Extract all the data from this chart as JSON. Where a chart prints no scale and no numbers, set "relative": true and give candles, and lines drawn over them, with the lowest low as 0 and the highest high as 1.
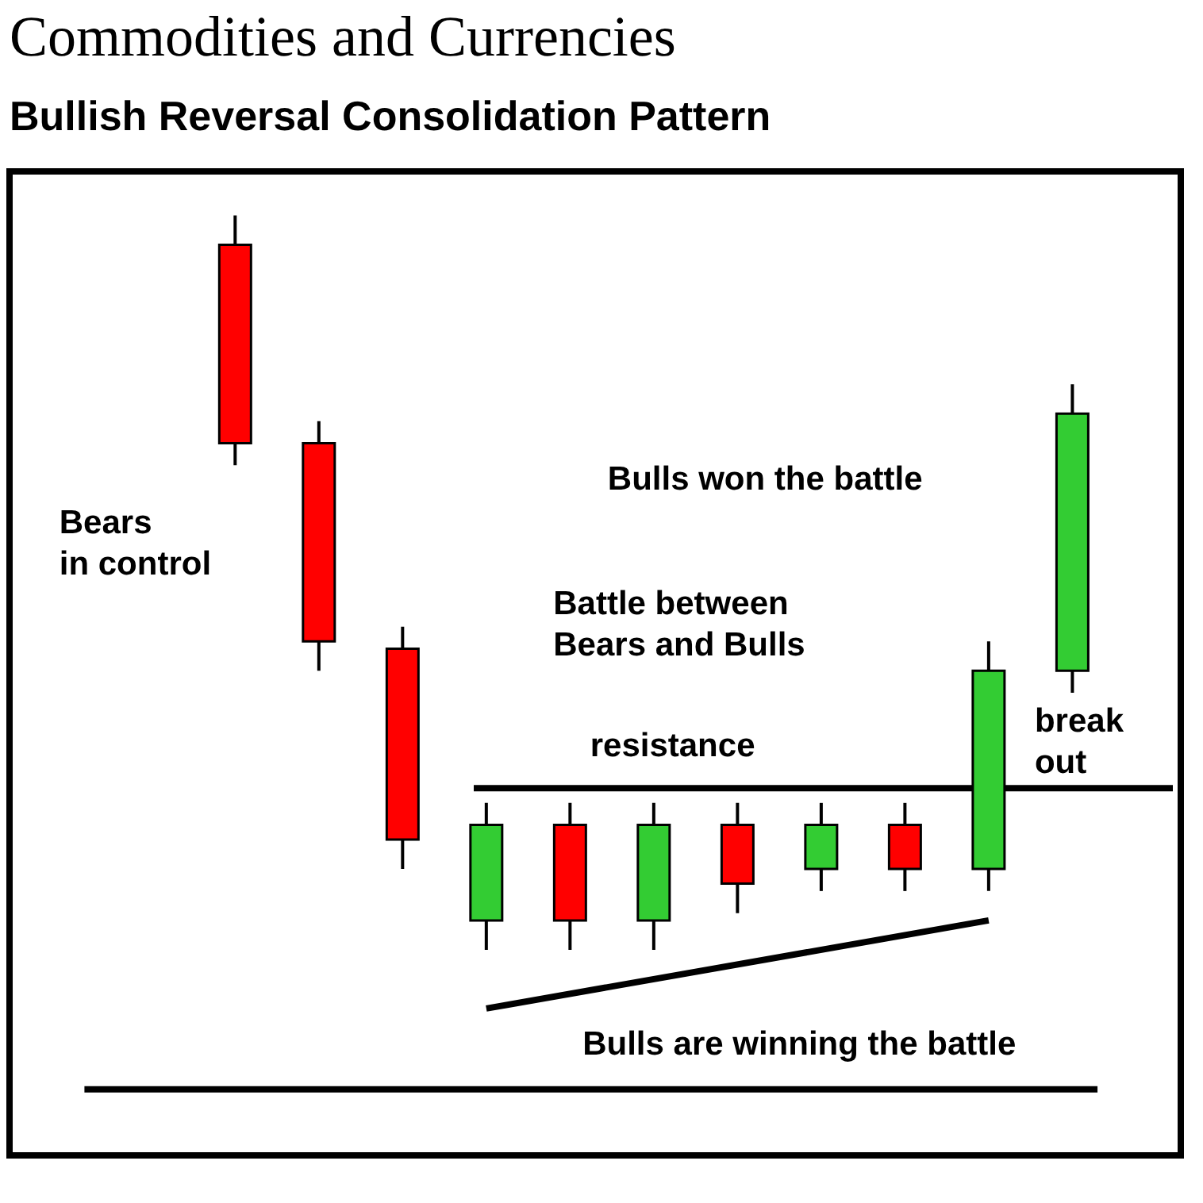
{
  "chart_data": {
    "type": "candlestick",
    "title": "Commodities and Currencies",
    "subtitle": "Bullish Reversal Consolidation Pattern",
    "relative": true,
    "categories": [
      null,
      null,
      null,
      null,
      null,
      null,
      null,
      null,
      null,
      null,
      null
    ],
    "ohlc": [
      [
        0.96,
        1.0,
        0.66,
        0.69
      ],
      [
        0.69,
        0.72,
        0.38,
        0.42
      ],
      [
        0.41,
        0.44,
        0.11,
        0.15
      ],
      [
        0.04,
        0.2,
        0.0,
        0.17
      ],
      [
        0.17,
        0.2,
        0.0,
        0.04
      ],
      [
        0.04,
        0.2,
        0.0,
        0.17
      ],
      [
        0.17,
        0.2,
        0.05,
        0.09
      ],
      [
        0.11,
        0.2,
        0.08,
        0.17
      ],
      [
        0.17,
        0.2,
        0.08,
        0.11
      ],
      [
        0.11,
        0.42,
        0.08,
        0.38
      ],
      [
        0.38,
        0.77,
        0.35,
        0.73
      ]
    ],
    "colors": [
      "#ff0000",
      "#ff0000",
      "#ff0000",
      "#33cc33",
      "#ff0000",
      "#33cc33",
      "#ff0000",
      "#33cc33",
      "#ff0000",
      "#33cc33",
      "#33cc33"
    ],
    "series": [
      {
        "type": "line",
        "color": "#000000",
        "values": [
          null,
          null,
          null,
          -0.08,
          null,
          null,
          null,
          null,
          null,
          0.04,
          null
        ]
      }
    ],
    "ref_lines": [
      {
        "axis": "y",
        "value": 0.22,
        "label": "resistance",
        "color": "#000000"
      },
      {
        "axis": "y",
        "value": -0.19,
        "color": "#000000"
      }
    ],
    "annotations": [
      "Bears in control",
      "Battle between Bears and Bulls",
      "Bulls won the battle",
      "break out",
      "Bulls are winning the battle"
    ]
  }
}
